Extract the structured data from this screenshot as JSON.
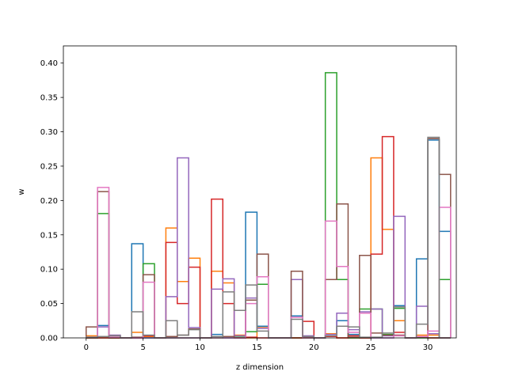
{
  "chart_data": {
    "type": "step-histogram",
    "title": "",
    "xlabel": "z dimension",
    "ylabel": "w",
    "xlim": [
      -2.0,
      32.5
    ],
    "ylim": [
      0,
      0.425
    ],
    "x_ticks": [
      0,
      5,
      10,
      15,
      20,
      25,
      30
    ],
    "y_ticks": [
      0.0,
      0.05,
      0.1,
      0.15,
      0.2,
      0.25,
      0.3,
      0.35,
      0.4
    ],
    "y_tick_labels": [
      "0.00",
      "0.05",
      "0.10",
      "0.15",
      "0.20",
      "0.25",
      "0.30",
      "0.35",
      "0.40"
    ],
    "bin_edges": [
      0,
      1,
      2,
      3,
      4,
      5,
      6,
      7,
      8,
      9,
      10,
      11,
      12,
      13,
      14,
      15,
      16,
      17,
      18,
      19,
      20,
      21,
      22,
      23,
      24,
      25,
      26,
      27,
      28,
      29,
      30,
      31,
      32
    ],
    "grid": false,
    "legend": "none",
    "series": [
      {
        "color": "#1f77b4",
        "values": [
          0,
          0.018,
          0,
          0,
          0.137,
          0,
          0,
          0,
          0,
          0,
          0,
          0.005,
          0,
          0,
          0.183,
          0.017,
          0,
          0,
          0.032,
          0,
          0,
          0.006,
          0.025,
          0.005,
          0,
          0,
          0,
          0.047,
          0,
          0.115,
          0.288,
          0.155
        ]
      },
      {
        "color": "#ff7f0e",
        "values": [
          0.003,
          0,
          0,
          0,
          0.008,
          0.002,
          0,
          0.16,
          0.082,
          0.116,
          0,
          0.097,
          0.08,
          0.004,
          0,
          0.015,
          0,
          0,
          0,
          0,
          0,
          0.006,
          0,
          0,
          0,
          0.262,
          0.158,
          0.025,
          0,
          0.004,
          0.004,
          0
        ]
      },
      {
        "color": "#2ca02c",
        "values": [
          0,
          0.181,
          0,
          0,
          0,
          0.108,
          0,
          0,
          0,
          0,
          0,
          0,
          0.002,
          0.001,
          0.009,
          0.078,
          0,
          0,
          0,
          0,
          0,
          0.386,
          0.085,
          0,
          0.042,
          0.042,
          0.005,
          0.043,
          0,
          0,
          0,
          0.085
        ]
      },
      {
        "color": "#d62728",
        "values": [
          0,
          0,
          0,
          0,
          0,
          0.003,
          0,
          0.139,
          0.05,
          0.103,
          0,
          0.202,
          0.05,
          0,
          0.001,
          0,
          0,
          0,
          0,
          0.024,
          0,
          0.002,
          0,
          0.003,
          0,
          0.122,
          0.293,
          0.008,
          0,
          0.001,
          0,
          0
        ]
      },
      {
        "color": "#9467bd",
        "values": [
          0.001,
          0.016,
          0.004,
          0,
          0,
          0,
          0,
          0.06,
          0.262,
          0.015,
          0,
          0.071,
          0.086,
          0.003,
          0.058,
          0.014,
          0,
          0,
          0.085,
          0.003,
          0,
          0.005,
          0.036,
          0.012,
          0.038,
          0.042,
          0.003,
          0.177,
          0,
          0.046,
          0.006,
          0
        ]
      },
      {
        "color": "#8c564b",
        "values": [
          0.016,
          0.213,
          0.003,
          0,
          0.001,
          0.092,
          0,
          0.002,
          0.004,
          0.013,
          0,
          0.002,
          0.002,
          0,
          0.055,
          0.122,
          0,
          0,
          0.097,
          0.001,
          0,
          0.085,
          0.195,
          0.001,
          0.12,
          0.007,
          0.004,
          0.004,
          0,
          0.001,
          0.29,
          0.238
        ]
      },
      {
        "color": "#e377c2",
        "values": [
          0.001,
          0.219,
          0.001,
          0,
          0,
          0.081,
          0,
          0,
          0,
          0,
          0,
          0,
          0,
          0,
          0.05,
          0.089,
          0,
          0,
          0.03,
          0,
          0,
          0.17,
          0.104,
          0.008,
          0.036,
          0,
          0,
          0.003,
          0,
          0.002,
          0.01,
          0.19
        ]
      },
      {
        "color": "#7f7f7f",
        "values": [
          0.001,
          0.002,
          0.003,
          0,
          0.038,
          0.004,
          0,
          0.025,
          0.004,
          0.012,
          0,
          0.002,
          0.067,
          0.04,
          0.077,
          0.01,
          0,
          0,
          0.027,
          0.002,
          0,
          0.003,
          0.017,
          0.016,
          0.001,
          0.001,
          0.007,
          0.045,
          0,
          0.02,
          0.292,
          0
        ]
      }
    ]
  }
}
